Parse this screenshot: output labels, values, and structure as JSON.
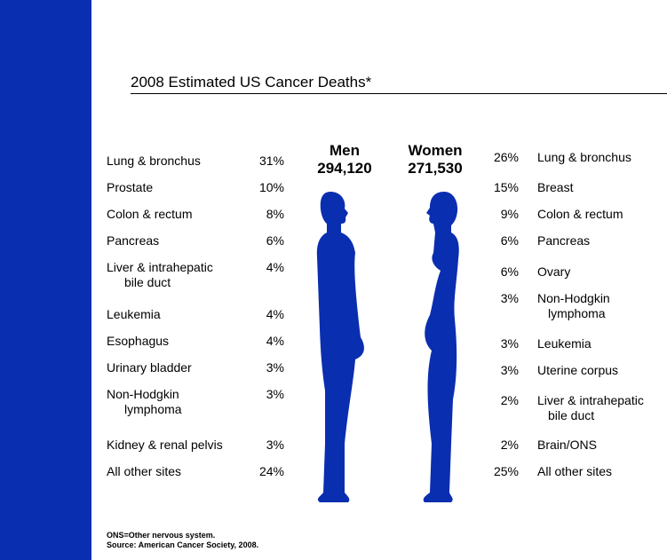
{
  "title": "2008 Estimated US Cancer Deaths*",
  "men": {
    "label": "Men",
    "total": "294,120",
    "rows": [
      {
        "site": [
          "Lung & bronchus"
        ],
        "pct": "31%"
      },
      {
        "site": [
          "Prostate"
        ],
        "pct": "10%"
      },
      {
        "site": [
          "Colon & rectum"
        ],
        "pct": "8%"
      },
      {
        "site": [
          "Pancreas"
        ],
        "pct": "6%"
      },
      {
        "site": [
          "Liver & intrahepatic",
          "bile duct"
        ],
        "pct": "4%"
      },
      {
        "site": [
          "Leukemia"
        ],
        "pct": "4%"
      },
      {
        "site": [
          "Esophagus"
        ],
        "pct": "4%"
      },
      {
        "site": [
          "Urinary bladder"
        ],
        "pct": "3%"
      },
      {
        "site": [
          "Non-Hodgkin",
          "lymphoma"
        ],
        "pct": "3%"
      },
      {
        "site": [
          "Kidney & renal pelvis"
        ],
        "pct": "3%"
      },
      {
        "site": [
          "All other sites"
        ],
        "pct": "24%"
      }
    ]
  },
  "women": {
    "label": "Women",
    "total": "271,530",
    "rows": [
      {
        "site": [
          "Lung & bronchus"
        ],
        "pct": "26%"
      },
      {
        "site": [
          "Breast"
        ],
        "pct": "15%"
      },
      {
        "site": [
          "Colon & rectum"
        ],
        "pct": "9%"
      },
      {
        "site": [
          "Pancreas"
        ],
        "pct": "6%"
      },
      {
        "site": [
          "Ovary"
        ],
        "pct": "6%"
      },
      {
        "site": [
          "Non-Hodgkin",
          "lymphoma"
        ],
        "pct": "3%"
      },
      {
        "site": [
          "Leukemia"
        ],
        "pct": "3%"
      },
      {
        "site": [
          "Uterine corpus"
        ],
        "pct": "3%"
      },
      {
        "site": [
          "Liver & intrahepatic",
          "bile duct"
        ],
        "pct": "2%"
      },
      {
        "site": [
          "Brain/ONS"
        ],
        "pct": "2%"
      },
      {
        "site": [
          "All other sites"
        ],
        "pct": "25%"
      }
    ]
  },
  "footnotes": [
    "ONS=Other nervous system.",
    "Source: American Cancer Society, 2008."
  ]
}
